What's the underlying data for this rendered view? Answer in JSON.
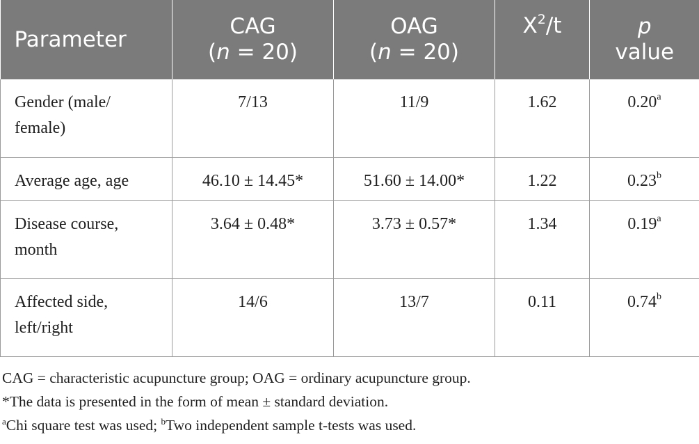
{
  "table": {
    "headers": {
      "parameter": "Parameter",
      "cag_name": "CAG",
      "cag_open": "(",
      "cag_n": "n",
      "cag_close": " = 20)",
      "oag_name": "OAG",
      "oag_open": "(",
      "oag_n": "n",
      "oag_close": " = 20)",
      "stat_x": "X",
      "stat_sup": "2",
      "stat_rest": "/t",
      "p_italic": "p",
      "p_value": "value"
    },
    "rows": [
      {
        "parameter_line1": "Gender (male/",
        "parameter_line2": "female)",
        "cag": "7/13",
        "oag": "11/9",
        "stat": "1.62",
        "p": "0.20",
        "p_sup": "a"
      },
      {
        "parameter_line1": "Average age, age",
        "parameter_line2": "",
        "cag": "46.10 ± 14.45*",
        "oag": "51.60 ± 14.00*",
        "stat": "1.22",
        "p": "0.23",
        "p_sup": "b"
      },
      {
        "parameter_line1": "Disease course,",
        "parameter_line2": "month",
        "cag": "3.64 ± 0.48*",
        "oag": "3.73 ± 0.57*",
        "stat": "1.34",
        "p": "0.19",
        "p_sup": "a"
      },
      {
        "parameter_line1": "Affected side,",
        "parameter_line2": "left/right",
        "cag": "14/6",
        "oag": "13/7",
        "stat": "0.11",
        "p": "0.74",
        "p_sup": "b"
      }
    ]
  },
  "footnotes": {
    "abbrev": "CAG = characteristic acupuncture group; OAG = ordinary acupuncture group.",
    "asterisk": "*The data is presented in the form of mean ± standard deviation.",
    "sup_a": "a",
    "test_a": "Chi square test was used; ",
    "sup_b": "b",
    "test_b": "Two independent sample t-tests was used."
  }
}
